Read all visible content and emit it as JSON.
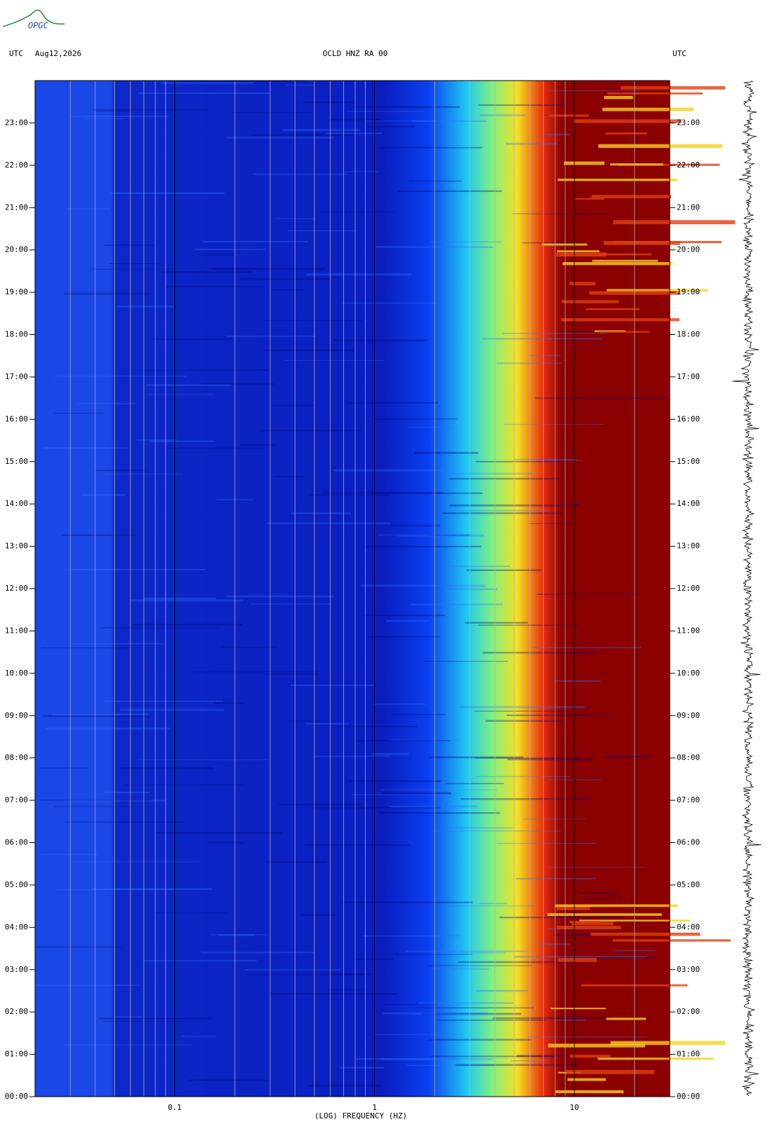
{
  "logo": "OPGC",
  "chart_data": {
    "type": "spectrogram",
    "header_left": "UTC",
    "date": "Aug12,2026",
    "title": "OCLD HNZ RA 00",
    "header_right": "UTC",
    "x_label": "(LOG) FREQUENCY (HZ)",
    "xscale": "log",
    "xlim": [
      0.02,
      30
    ],
    "xticks": [
      0.1,
      1,
      10
    ],
    "xminorticks": [
      0.03,
      0.04,
      0.05,
      0.06,
      0.07,
      0.08,
      0.09,
      0.2,
      0.3,
      0.4,
      0.5,
      0.6,
      0.7,
      0.8,
      0.9,
      2,
      3,
      4,
      5,
      6,
      7,
      8,
      9,
      20
    ],
    "ylim": [
      0,
      24
    ],
    "yticks": [
      {
        "value": 0,
        "label": "00:00"
      },
      {
        "value": 1,
        "label": "01:00"
      },
      {
        "value": 2,
        "label": "02:00"
      },
      {
        "value": 3,
        "label": "03:00"
      },
      {
        "value": 4,
        "label": "04:00"
      },
      {
        "value": 5,
        "label": "05:00"
      },
      {
        "value": 6,
        "label": "06:00"
      },
      {
        "value": 7,
        "label": "07:00"
      },
      {
        "value": 8,
        "label": "08:00"
      },
      {
        "value": 9,
        "label": "09:00"
      },
      {
        "value": 10,
        "label": "10:00"
      },
      {
        "value": 11,
        "label": "11:00"
      },
      {
        "value": 12,
        "label": "12:00"
      },
      {
        "value": 13,
        "label": "13:00"
      },
      {
        "value": 14,
        "label": "14:00"
      },
      {
        "value": 15,
        "label": "15:00"
      },
      {
        "value": 16,
        "label": "16:00"
      },
      {
        "value": 17,
        "label": "17:00"
      },
      {
        "value": 18,
        "label": "18:00"
      },
      {
        "value": 19,
        "label": "19:00"
      },
      {
        "value": 20,
        "label": "20:00"
      },
      {
        "value": 21,
        "label": "21:00"
      },
      {
        "value": 22,
        "label": "22:00"
      },
      {
        "value": 23,
        "label": "23:00"
      }
    ]
  }
}
